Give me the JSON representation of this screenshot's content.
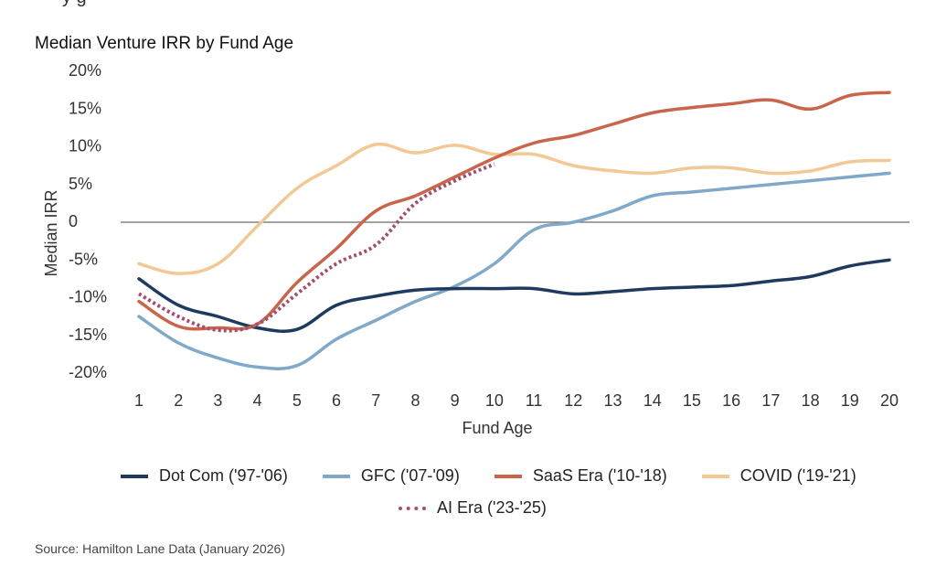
{
  "header": {
    "top_fragment": "y                  g",
    "title": "Median Venture IRR by Fund Age"
  },
  "source_note": "Source: Hamilton Lane Data (January 2026)",
  "chart_data": {
    "type": "line",
    "title": "Median Venture IRR by Fund Age",
    "xlabel": "Fund Age",
    "ylabel": "Median IRR",
    "x": [
      1,
      2,
      3,
      4,
      5,
      6,
      7,
      8,
      9,
      10,
      11,
      12,
      13,
      14,
      15,
      16,
      17,
      18,
      19,
      20
    ],
    "xlim": [
      1,
      20
    ],
    "ylim": [
      -20,
      20
    ],
    "y_ticks": [
      "20%",
      "15%",
      "10%",
      "5%",
      "0",
      "-5%",
      "-10%",
      "-15%",
      "-20%"
    ],
    "y_tick_values": [
      20,
      15,
      10,
      5,
      0,
      -5,
      -10,
      -15,
      -20
    ],
    "grid": false,
    "zero_line": true,
    "legend_position": "bottom",
    "series": [
      {
        "name": "Dot Com ('97-'06)",
        "color": "#1f3a5f",
        "style": "solid",
        "values": [
          -7.5,
          -11,
          -12.5,
          -14,
          -14.2,
          -11,
          -9.8,
          -9,
          -8.8,
          -8.8,
          -8.8,
          -9.5,
          -9.2,
          -8.8,
          -8.6,
          -8.4,
          -7.8,
          -7.2,
          -5.8,
          -5
        ]
      },
      {
        "name": "GFC ('07-'09)",
        "color": "#7fa8c9",
        "style": "solid",
        "values": [
          -12.5,
          -16,
          -18,
          -19.2,
          -19,
          -15.5,
          -13,
          -10.5,
          -8.5,
          -5.5,
          -1,
          0,
          1.5,
          3.5,
          4,
          4.5,
          5,
          5.5,
          6,
          6.5
        ]
      },
      {
        "name": "SaaS Era ('10-'18)",
        "color": "#c8654a",
        "style": "solid",
        "values": [
          -10.5,
          -13.8,
          -14,
          -13.5,
          -8,
          -3.5,
          1.5,
          3.5,
          6,
          8.5,
          10.5,
          11.5,
          13,
          14.5,
          15.2,
          15.7,
          16.2,
          15,
          16.8,
          17.2
        ]
      },
      {
        "name": "COVID ('19-'21)",
        "color": "#f2c894",
        "style": "solid",
        "values": [
          -5.5,
          -6.8,
          -5.5,
          -0.5,
          4.5,
          7.5,
          10.3,
          9.2,
          10.2,
          9,
          9,
          7.5,
          6.8,
          6.5,
          7.2,
          7.2,
          6.5,
          6.8,
          8,
          8.2
        ]
      },
      {
        "name": "AI Era ('23-'25)",
        "color": "#a3506f",
        "style": "dotted",
        "values": [
          -9.5,
          -12.5,
          -14.3,
          -13.5,
          -9.5,
          -5.5,
          -3,
          2.5,
          5.5,
          7.7,
          null,
          null,
          null,
          null,
          null,
          null,
          null,
          null,
          null,
          null
        ]
      }
    ]
  }
}
